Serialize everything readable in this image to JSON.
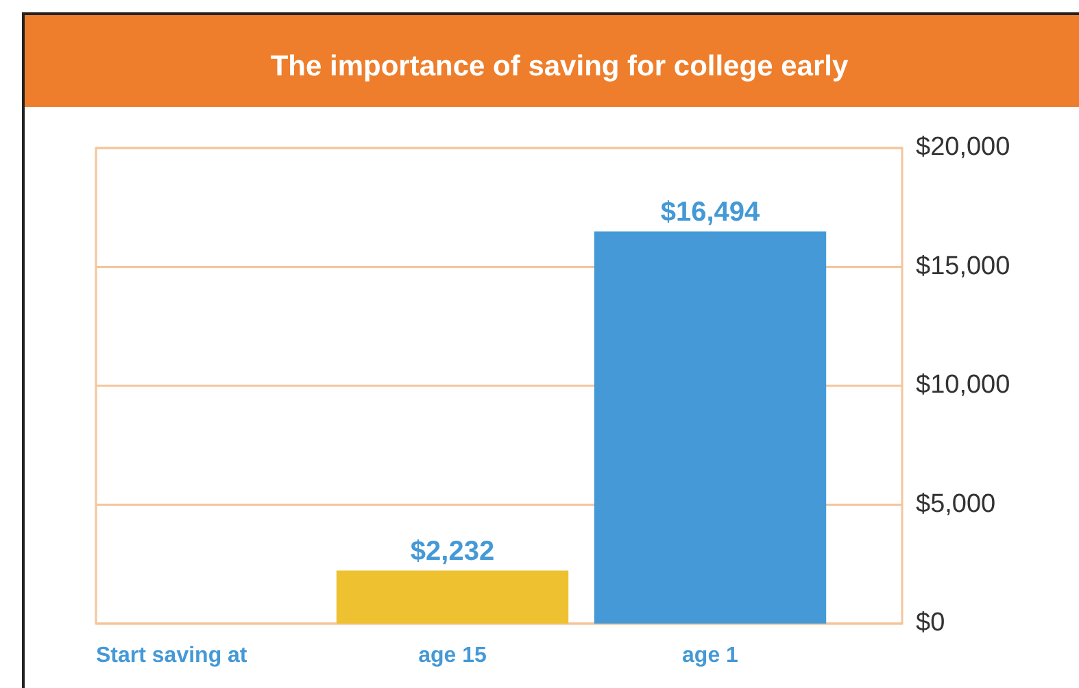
{
  "chart_data": {
    "type": "bar",
    "title": "The importance of saving for college early",
    "xlabel": "Start saving at",
    "categories": [
      "age 15",
      "age 1"
    ],
    "values": [
      2232,
      16494
    ],
    "colors": [
      "#eec131",
      "#4499d6"
    ],
    "value_labels": [
      "$2,232",
      "$16,494"
    ],
    "ylim": [
      0,
      20000
    ],
    "yticks": [
      {
        "value": 0,
        "label": "$0"
      },
      {
        "value": 5000,
        "label": "$5,000"
      },
      {
        "value": 10000,
        "label": "$10,000"
      },
      {
        "value": 15000,
        "label": "$15,000"
      },
      {
        "value": 20000,
        "label": "$20,000"
      }
    ],
    "grid": "y"
  }
}
